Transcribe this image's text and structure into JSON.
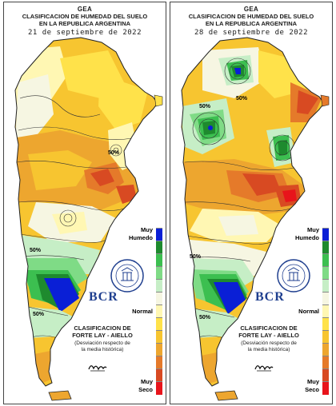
{
  "maps": [
    {
      "id": "left",
      "header": {
        "org": "GEA",
        "title_line1": "CLASIFICACION DE HUMEDAD DEL SUELO",
        "title_line2": "EN LA REPUBLICA ARGENTINA",
        "date": "21 de septiembre de 2022"
      },
      "contour_labels": [
        "50%",
        "50%",
        "50%"
      ]
    },
    {
      "id": "right",
      "header": {
        "org": "GEA",
        "title_line1": "CLASIFICACION DE HUMEDAD DEL SUELO",
        "title_line2": "EN LA REPUBLICA ARGENTINA",
        "date": "28 de septiembre de 2022"
      },
      "contour_labels": [
        "50%",
        "50%",
        "50%",
        "50%"
      ]
    }
  ],
  "legend": {
    "top_label_1": "Muy",
    "top_label_2": "Humedo",
    "mid_label": "Normal",
    "bottom_label_1": "Muy",
    "bottom_label_2": "Seco",
    "colors": [
      "#0a1fd6",
      "#1e8a2e",
      "#3cbf50",
      "#7fdb86",
      "#c6eec6",
      "#f6f6e2",
      "#fff7b3",
      "#ffe24a",
      "#f7c530",
      "#eda62f",
      "#e57a2a",
      "#d84a22",
      "#e8141b"
    ]
  },
  "classification": {
    "line1": "CLASIFICACION DE",
    "line2": "FORTE LAY - AIELLO",
    "line3": "(Desviación respecto de",
    "line4": "la media histórica)"
  },
  "brand": {
    "name": "BCR",
    "seal_text": "BOLSA DE COMERCIO DE ROSARIO"
  }
}
